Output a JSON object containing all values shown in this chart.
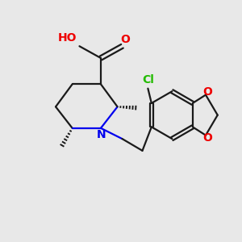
{
  "background_color": "#e8e8e8",
  "bond_color": "#1a1a1a",
  "N_color": "#0000ee",
  "O_color": "#ee0000",
  "Cl_color": "#22bb00",
  "figsize": [
    3.0,
    3.0
  ],
  "dpi": 100,
  "xlim": [
    0,
    10
  ],
  "ylim": [
    0,
    10
  ]
}
